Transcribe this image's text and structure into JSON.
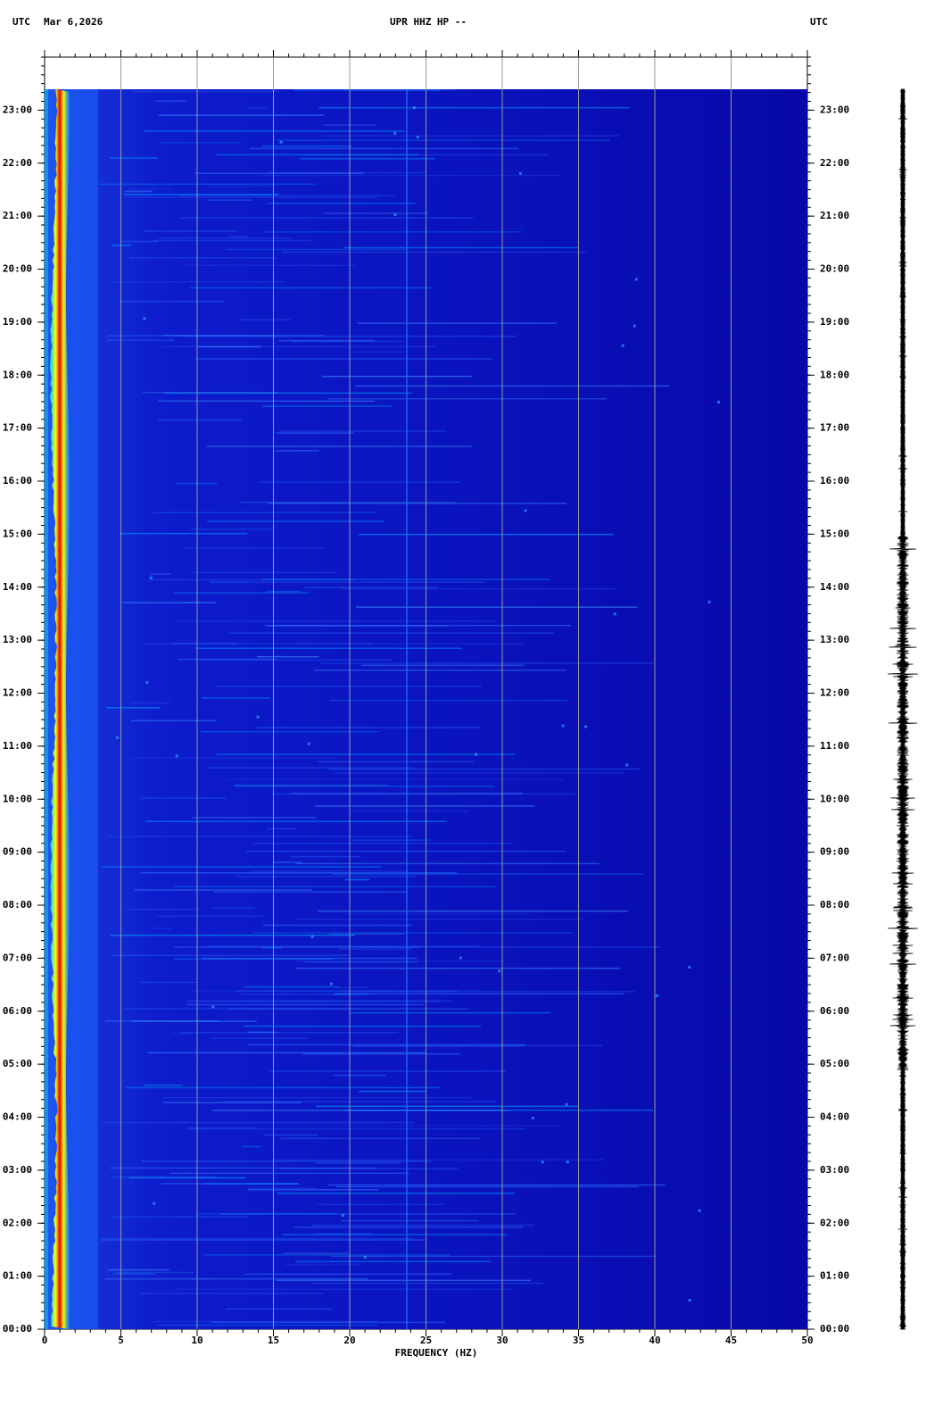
{
  "chart_data": {
    "type": "spectrogram",
    "timezone": "UTC",
    "date": "Mar 6,2026",
    "title": "UPR HHZ HP --",
    "x_label": "FREQUENCY (HZ)",
    "xlim": [
      0,
      50
    ],
    "xticks": [
      0,
      5,
      10,
      15,
      20,
      25,
      30,
      35,
      40,
      45,
      50
    ],
    "ylim": [
      0,
      24
    ],
    "yticks": [
      {
        "value": 0,
        "label": "00:00"
      },
      {
        "value": 1,
        "label": "01:00"
      },
      {
        "value": 2,
        "label": "02:00"
      },
      {
        "value": 3,
        "label": "03:00"
      },
      {
        "value": 4,
        "label": "04:00"
      },
      {
        "value": 5,
        "label": "05:00"
      },
      {
        "value": 6,
        "label": "06:00"
      },
      {
        "value": 7,
        "label": "07:00"
      },
      {
        "value": 8,
        "label": "08:00"
      },
      {
        "value": 9,
        "label": "09:00"
      },
      {
        "value": 10,
        "label": "10:00"
      },
      {
        "value": 11,
        "label": "11:00"
      },
      {
        "value": 12,
        "label": "12:00"
      },
      {
        "value": 13,
        "label": "13:00"
      },
      {
        "value": 14,
        "label": "14:00"
      },
      {
        "value": 15,
        "label": "15:00"
      },
      {
        "value": 16,
        "label": "16:00"
      },
      {
        "value": 17,
        "label": "17:00"
      },
      {
        "value": 18,
        "label": "18:00"
      },
      {
        "value": 19,
        "label": "19:00"
      },
      {
        "value": 20,
        "label": "20:00"
      },
      {
        "value": 21,
        "label": "21:00"
      },
      {
        "value": 22,
        "label": "22:00"
      },
      {
        "value": 23,
        "label": "23:00"
      }
    ],
    "grid": true
  }
}
